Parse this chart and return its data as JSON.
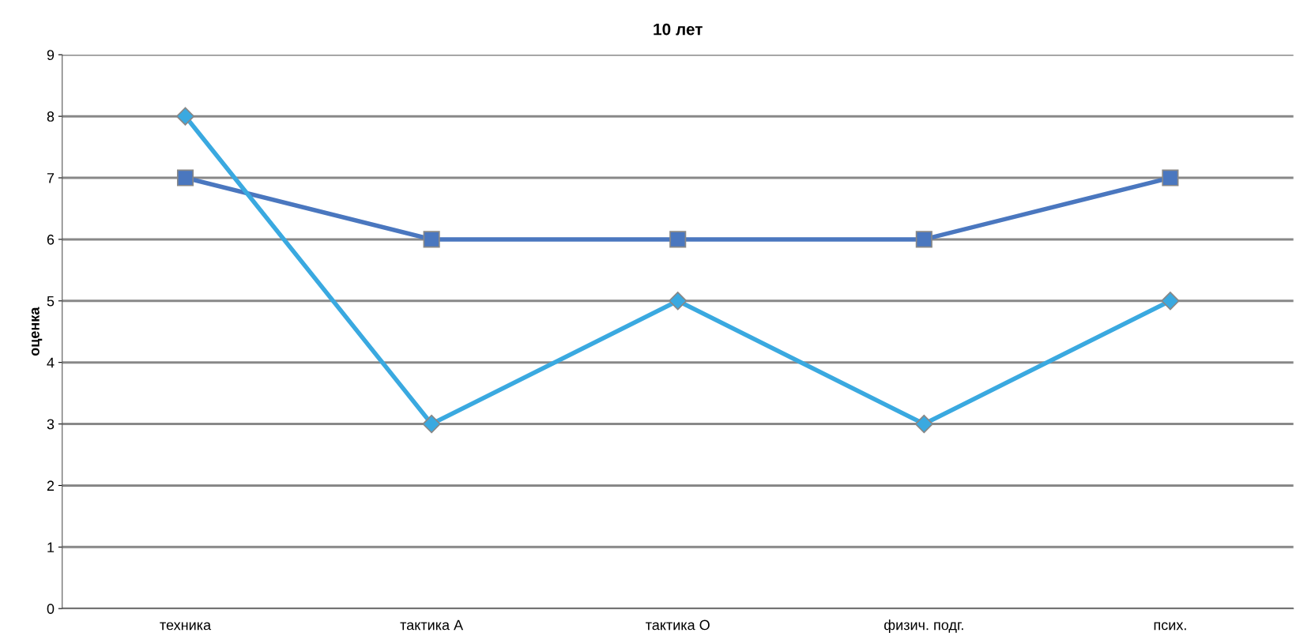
{
  "chart_data": {
    "type": "line",
    "title": "10 лет",
    "ylabel": "оценка",
    "categories": [
      "техника",
      "тактика А",
      "тактика О",
      "физич. подг.",
      "псих."
    ],
    "series": [
      {
        "color": "#4a77bf",
        "marker": "square",
        "values": [
          7,
          6,
          6,
          6,
          7
        ]
      },
      {
        "color": "#3aa9e0",
        "marker": "diamond",
        "values": [
          8,
          3,
          5,
          3,
          5
        ]
      }
    ],
    "ylim": [
      0,
      9
    ],
    "yticks": [
      0,
      1,
      2,
      3,
      4,
      5,
      6,
      7,
      8,
      9
    ],
    "grid": "y",
    "line_style": "solid"
  }
}
